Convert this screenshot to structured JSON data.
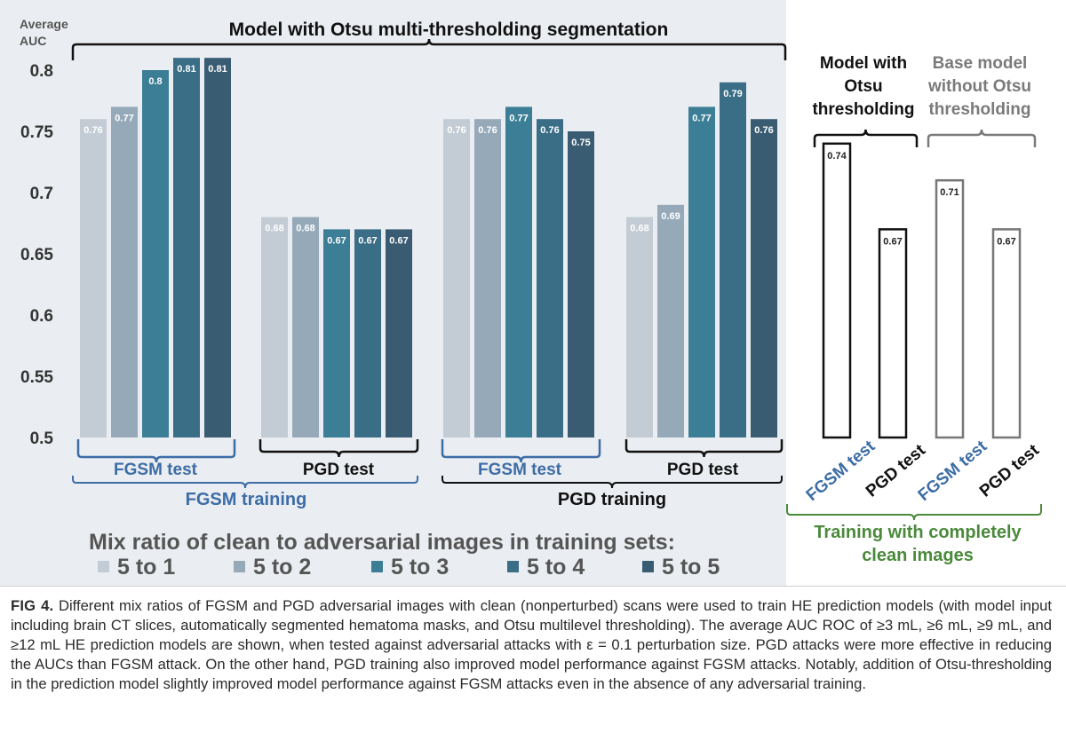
{
  "chart_data": {
    "type": "bar",
    "y_axis_label": [
      "Average",
      "AUC"
    ],
    "ylim": [
      0.5,
      0.8
    ],
    "yticks": [
      "0.5",
      "0.55",
      "0.6",
      "0.65",
      "0.7",
      "0.75",
      "0.8"
    ],
    "series_names": [
      "5 to 1",
      "5 to 2",
      "5 to 3",
      "5 to 4",
      "5 to 5"
    ],
    "series_colors": [
      "#c3ccd5",
      "#95a9b9",
      "#3c7e95",
      "#3a6d86",
      "#3a5c73"
    ],
    "groups": [
      {
        "label": "FGSM test",
        "training": "FGSM training",
        "values": [
          0.76,
          0.77,
          0.8,
          0.81,
          0.81
        ],
        "labels": [
          "0.76",
          "0.77",
          "0.8",
          "0.81",
          "0.81"
        ]
      },
      {
        "label": "PGD test",
        "training": "FGSM training",
        "values": [
          0.68,
          0.68,
          0.67,
          0.67,
          0.67
        ],
        "labels": [
          "0.68",
          "0.68",
          "0.67",
          "0.67",
          "0.67"
        ]
      },
      {
        "label": "FGSM test",
        "training": "PGD training",
        "values": [
          0.76,
          0.76,
          0.77,
          0.76,
          0.75
        ],
        "labels": [
          "0.76",
          "0.76",
          "0.77",
          "0.76",
          "0.75"
        ]
      },
      {
        "label": "PGD test",
        "training": "PGD training",
        "values": [
          0.68,
          0.69,
          0.77,
          0.79,
          0.76
        ],
        "labels": [
          "0.68",
          "0.69",
          "0.77",
          "0.79",
          "0.76"
        ]
      }
    ],
    "clean_bars": [
      {
        "model": "otsu",
        "test": "FGSM test",
        "value": 0.74,
        "label": "0.74"
      },
      {
        "model": "otsu",
        "test": "PGD test",
        "value": 0.67,
        "label": "0.67"
      },
      {
        "model": "base",
        "test": "FGSM test",
        "value": 0.71,
        "label": "0.71"
      },
      {
        "model": "base",
        "test": "PGD test",
        "value": 0.67,
        "label": "0.67"
      }
    ],
    "headers": {
      "main": "Model with Otsu multi-thresholding segmentation",
      "otsu": [
        "Model with",
        "Otsu",
        "thresholding"
      ],
      "base": [
        "Base model",
        "without Otsu",
        "thresholding"
      ]
    },
    "training_labels": {
      "fgsm": "FGSM training",
      "pgd": "PGD training",
      "clean": [
        "Training with completely",
        "clean images"
      ]
    },
    "legend_title": "Mix ratio of clean to adversarial images in training sets:",
    "colors": {
      "fgsm_blue": "#3d6da6",
      "clean_green": "#4a8a3a",
      "base_gray": "#7a7a7a",
      "black": "#111111"
    }
  },
  "caption": {
    "fig_label": "FIG 4.",
    "text": "Different mix ratios of FGSM and PGD adversarial images with clean (nonperturbed) scans were used to train HE prediction models (with model input including brain CT slices, automatically segmented hematoma masks, and Otsu multilevel thresholding). The average AUC ROC of ≥3 mL, ≥6 mL, ≥9 mL, and ≥12 mL HE prediction models are shown, when tested against adversarial attacks with ε = 0.1 perturbation size. PGD attacks were more effective in reducing the AUCs than FGSM attack. On the other hand, PGD training also improved model performance against FGSM attacks. Notably, addition of Otsu-thresholding in the prediction model slightly improved model performance against FGSM attacks even in the absence of any adversarial training."
  }
}
